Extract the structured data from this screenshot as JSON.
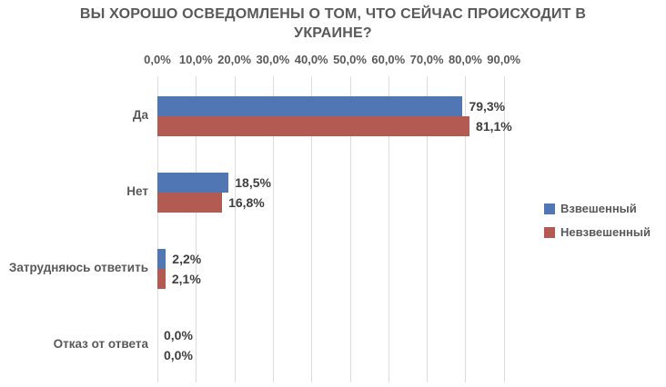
{
  "title": "ВЫ ХОРОШО ОСВЕДОМЛЕНЫ О ТОМ, ЧТО СЕЙЧАС ПРОИСХОДИТ В УКРАИНЕ?",
  "colors": {
    "weighted_blue": "#5077B4",
    "unweighted_red": "#B35A52",
    "gridline": "#DCDCDC",
    "axis_text": "#595959",
    "value_label_text": "#3F3F3F",
    "background": "#FFFFFF"
  },
  "chart_data": {
    "type": "bar",
    "orientation": "horizontal",
    "title": "ВЫ ХОРОШО ОСВЕДОМЛЕНЫ О ТОМ, ЧТО СЕЙЧАС ПРОИСХОДИТ В УКРАИНЕ?",
    "categories": [
      "Да",
      "Нет",
      "Затрудняюсь ответить",
      "Отказ от ответа"
    ],
    "series": [
      {
        "name": "Взвешенный",
        "color": "#5077B4",
        "values": [
          79.3,
          18.5,
          2.2,
          0.0
        ]
      },
      {
        "name": "Невзвешенный",
        "color": "#B35A52",
        "values": [
          81.1,
          16.8,
          2.1,
          0.0
        ]
      }
    ],
    "value_labels": [
      [
        "79,3%",
        "18,5%",
        "2,2%",
        "0,0%"
      ],
      [
        "81,1%",
        "16,8%",
        "2,1%",
        "0,0%"
      ]
    ],
    "x_ticks": [
      0,
      10,
      20,
      30,
      40,
      50,
      60,
      70,
      80,
      90
    ],
    "x_tick_labels": [
      "0,0%",
      "10,0%",
      "20,0%",
      "30,0%",
      "40,0%",
      "50,0%",
      "60,0%",
      "70,0%",
      "80,0%",
      "90,0%"
    ],
    "xlim": [
      0,
      94
    ],
    "grid": true,
    "axis_position": "top",
    "legend_position": "right",
    "decimal_separator": ","
  },
  "legend": {
    "items": [
      {
        "label": "Взвешенный",
        "color": "#5077B4"
      },
      {
        "label": "Невзвешенный",
        "color": "#B35A52"
      }
    ]
  }
}
